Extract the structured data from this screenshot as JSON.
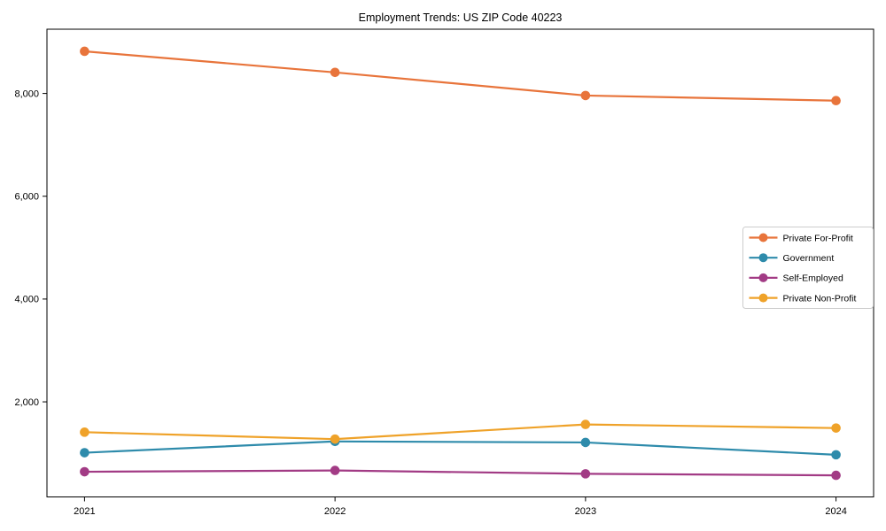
{
  "chart_data": {
    "type": "line",
    "title": "Employment Trends: US ZIP Code 40223",
    "xlabel": "",
    "ylabel": "",
    "x": [
      2021,
      2022,
      2023,
      2024
    ],
    "x_tick_labels": [
      "2021",
      "2022",
      "2023",
      "2024"
    ],
    "y_ticks": [
      {
        "value": 2000,
        "label": "2,000"
      },
      {
        "value": 4000,
        "label": "4,000"
      },
      {
        "value": 6000,
        "label": "6,000"
      },
      {
        "value": 8000,
        "label": "8,000"
      }
    ],
    "xlim": [
      2020.85,
      2024.15
    ],
    "ylim": [
      150,
      9250
    ],
    "grid": false,
    "background_color": "#ffffff",
    "text_color": "#000000",
    "legend_position": "center-right",
    "series": [
      {
        "name": "Private For-Profit",
        "color": "#E8743B",
        "values": [
          8820,
          8410,
          7960,
          7860
        ]
      },
      {
        "name": "Government",
        "color": "#2E8BAB",
        "values": [
          1010,
          1230,
          1210,
          970
        ]
      },
      {
        "name": "Self-Employed",
        "color": "#A23B85",
        "values": [
          640,
          665,
          600,
          570
        ]
      },
      {
        "name": "Private Non-Profit",
        "color": "#EFA229",
        "values": [
          1410,
          1275,
          1560,
          1490
        ]
      }
    ]
  }
}
